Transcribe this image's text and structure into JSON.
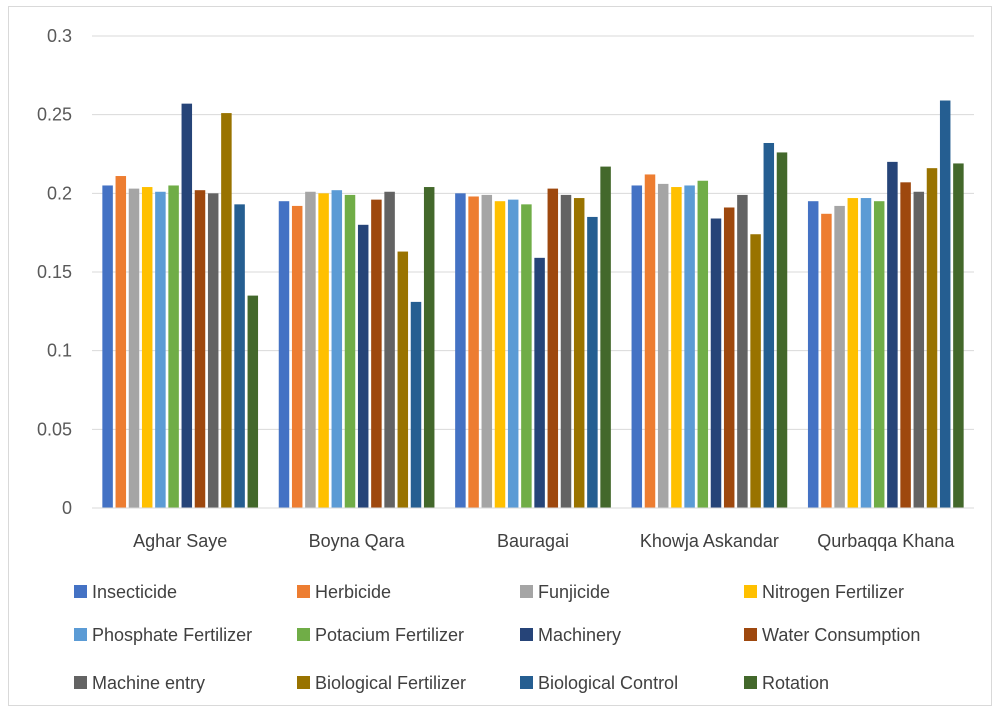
{
  "chart_data": {
    "type": "bar",
    "title": "",
    "xlabel": "",
    "ylabel": "",
    "ylim": [
      0,
      0.3
    ],
    "yticks": [
      "0",
      "0.05",
      "0.1",
      "0.15",
      "0.2",
      "0.25",
      "0.3"
    ],
    "grid": true,
    "legend_position": "bottom",
    "categories": [
      "Aghar Saye",
      "Boyna Qara",
      "Bauragai",
      "Khowja Askandar",
      "Qurbaqqa Khana"
    ],
    "series": [
      {
        "name": "Insecticide",
        "color": "#4472C4",
        "values": [
          0.205,
          0.195,
          0.2,
          0.205,
          0.195
        ]
      },
      {
        "name": "Herbicide",
        "color": "#ED7D31",
        "values": [
          0.211,
          0.192,
          0.198,
          0.212,
          0.187
        ]
      },
      {
        "name": "Funjicide",
        "color": "#A5A5A5",
        "values": [
          0.203,
          0.201,
          0.199,
          0.206,
          0.192
        ]
      },
      {
        "name": "Nitrogen Fertilizer",
        "color": "#FFC000",
        "values": [
          0.204,
          0.2,
          0.195,
          0.204,
          0.197
        ]
      },
      {
        "name": "Phosphate Fertilizer",
        "color": "#5B9BD5",
        "values": [
          0.201,
          0.202,
          0.196,
          0.205,
          0.197
        ]
      },
      {
        "name": "Potacium Fertilizer",
        "color": "#70AD47",
        "values": [
          0.205,
          0.199,
          0.193,
          0.208,
          0.195
        ]
      },
      {
        "name": "Machinery",
        "color": "#264478",
        "values": [
          0.257,
          0.18,
          0.159,
          0.184,
          0.22
        ]
      },
      {
        "name": "Water Consumption",
        "color": "#9E480E",
        "values": [
          0.202,
          0.196,
          0.203,
          0.191,
          0.207
        ]
      },
      {
        "name": "Machine entry",
        "color": "#636363",
        "values": [
          0.2,
          0.201,
          0.199,
          0.199,
          0.201
        ]
      },
      {
        "name": "Biological Fertilizer",
        "color": "#997300",
        "values": [
          0.251,
          0.163,
          0.197,
          0.174,
          0.216
        ]
      },
      {
        "name": "Biological Control",
        "color": "#255E91",
        "values": [
          0.193,
          0.131,
          0.185,
          0.232,
          0.259
        ]
      },
      {
        "name": "Rotation",
        "color": "#43682B",
        "values": [
          0.135,
          0.204,
          0.217,
          0.226,
          0.219
        ]
      }
    ]
  }
}
